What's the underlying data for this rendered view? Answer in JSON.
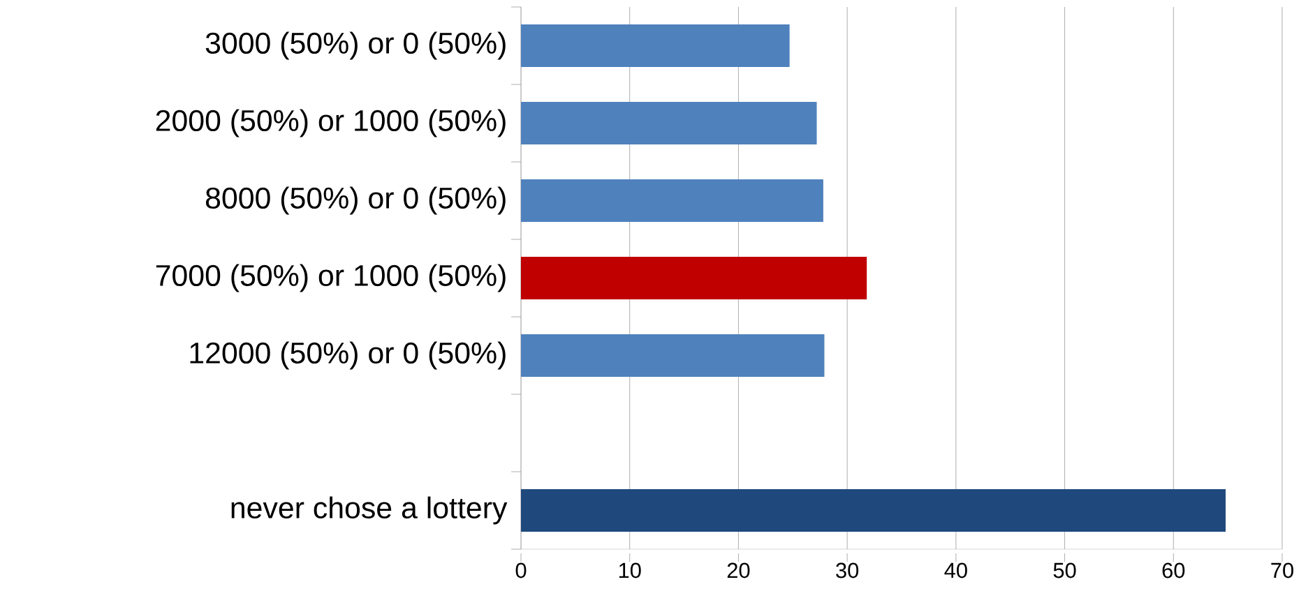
{
  "chart_data": {
    "type": "bar",
    "orientation": "horizontal",
    "categories": [
      "3000 (50%) or 0 (50%)",
      "2000 (50%) or 1000 (50%)",
      "8000 (50%) or 0 (50%)",
      "7000 (50%) or 1000 (50%)",
      "12000 (50%) or 0 (50%)",
      null,
      "never chose a lottery"
    ],
    "values": [
      24.7,
      27.2,
      27.8,
      31.8,
      27.9,
      null,
      64.8
    ],
    "colors": [
      "#4f81bd",
      "#4f81bd",
      "#4f81bd",
      "#c00000",
      "#4f81bd",
      "#4f81bd",
      "#1f497d"
    ],
    "xlim": [
      0,
      70
    ],
    "xticks": [
      0,
      10,
      20,
      30,
      40,
      50,
      60,
      70
    ],
    "grid": "x"
  }
}
